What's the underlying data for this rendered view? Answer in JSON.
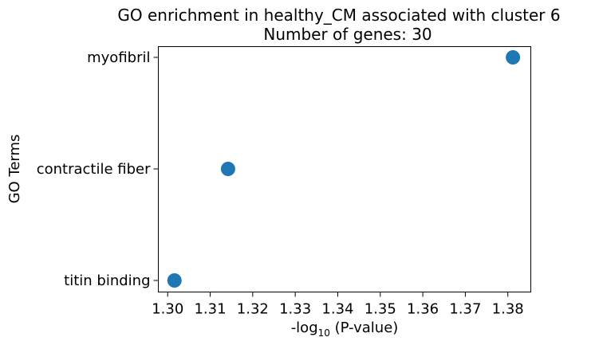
{
  "chart_data": {
    "type": "scatter",
    "title": "GO enrichment in healthy_CM associated with cluster 6",
    "subtitle": "Number of genes: 30",
    "xlabel_main": "-log",
    "xlabel_sub": "10",
    "xlabel_tail": " (P-value)",
    "ylabel": "GO Terms",
    "categories": [
      "myofibril",
      "contractile fiber",
      "titin binding"
    ],
    "values": [
      1.3812,
      1.3142,
      1.3016
    ],
    "xlim": [
      1.2978,
      1.3854
    ],
    "xticks": [
      1.3,
      1.31,
      1.32,
      1.33,
      1.34,
      1.35,
      1.36,
      1.37,
      1.38
    ],
    "xtick_labels": [
      "1.30",
      "1.31",
      "1.32",
      "1.33",
      "1.34",
      "1.35",
      "1.36",
      "1.37",
      "1.38"
    ],
    "grid": false,
    "marker_color": "#1f77b4"
  }
}
